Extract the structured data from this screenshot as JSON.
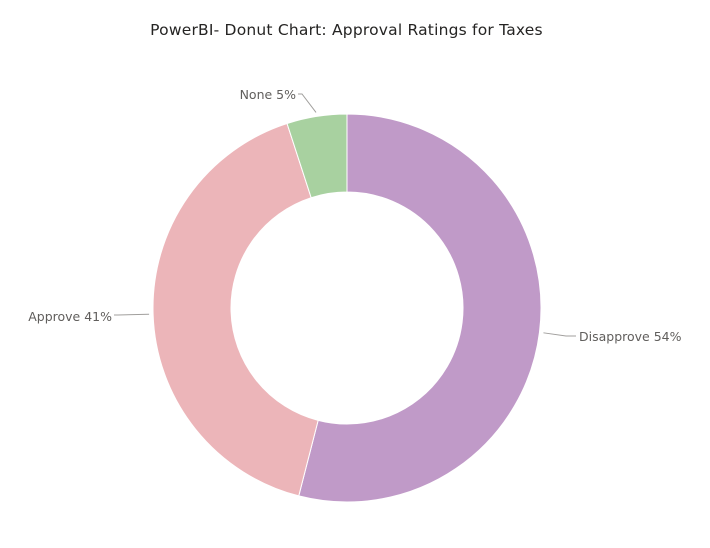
{
  "chart_data": {
    "type": "pie",
    "variant": "donut",
    "title": "PowerBI- Donut Chart: Approval Ratings for Taxes",
    "slices": [
      {
        "label": "Disapprove",
        "value": 54,
        "display": "Disapprove 54%",
        "color": "#c09ac8"
      },
      {
        "label": "Approve",
        "value": 41,
        "display": "Approve 41%",
        "color": "#ecb5b9"
      },
      {
        "label": "None",
        "value": 5,
        "display": "None 5%",
        "color": "#a8d1a0"
      }
    ],
    "legend": "none",
    "label_style": "outside-with-leader-lines"
  }
}
